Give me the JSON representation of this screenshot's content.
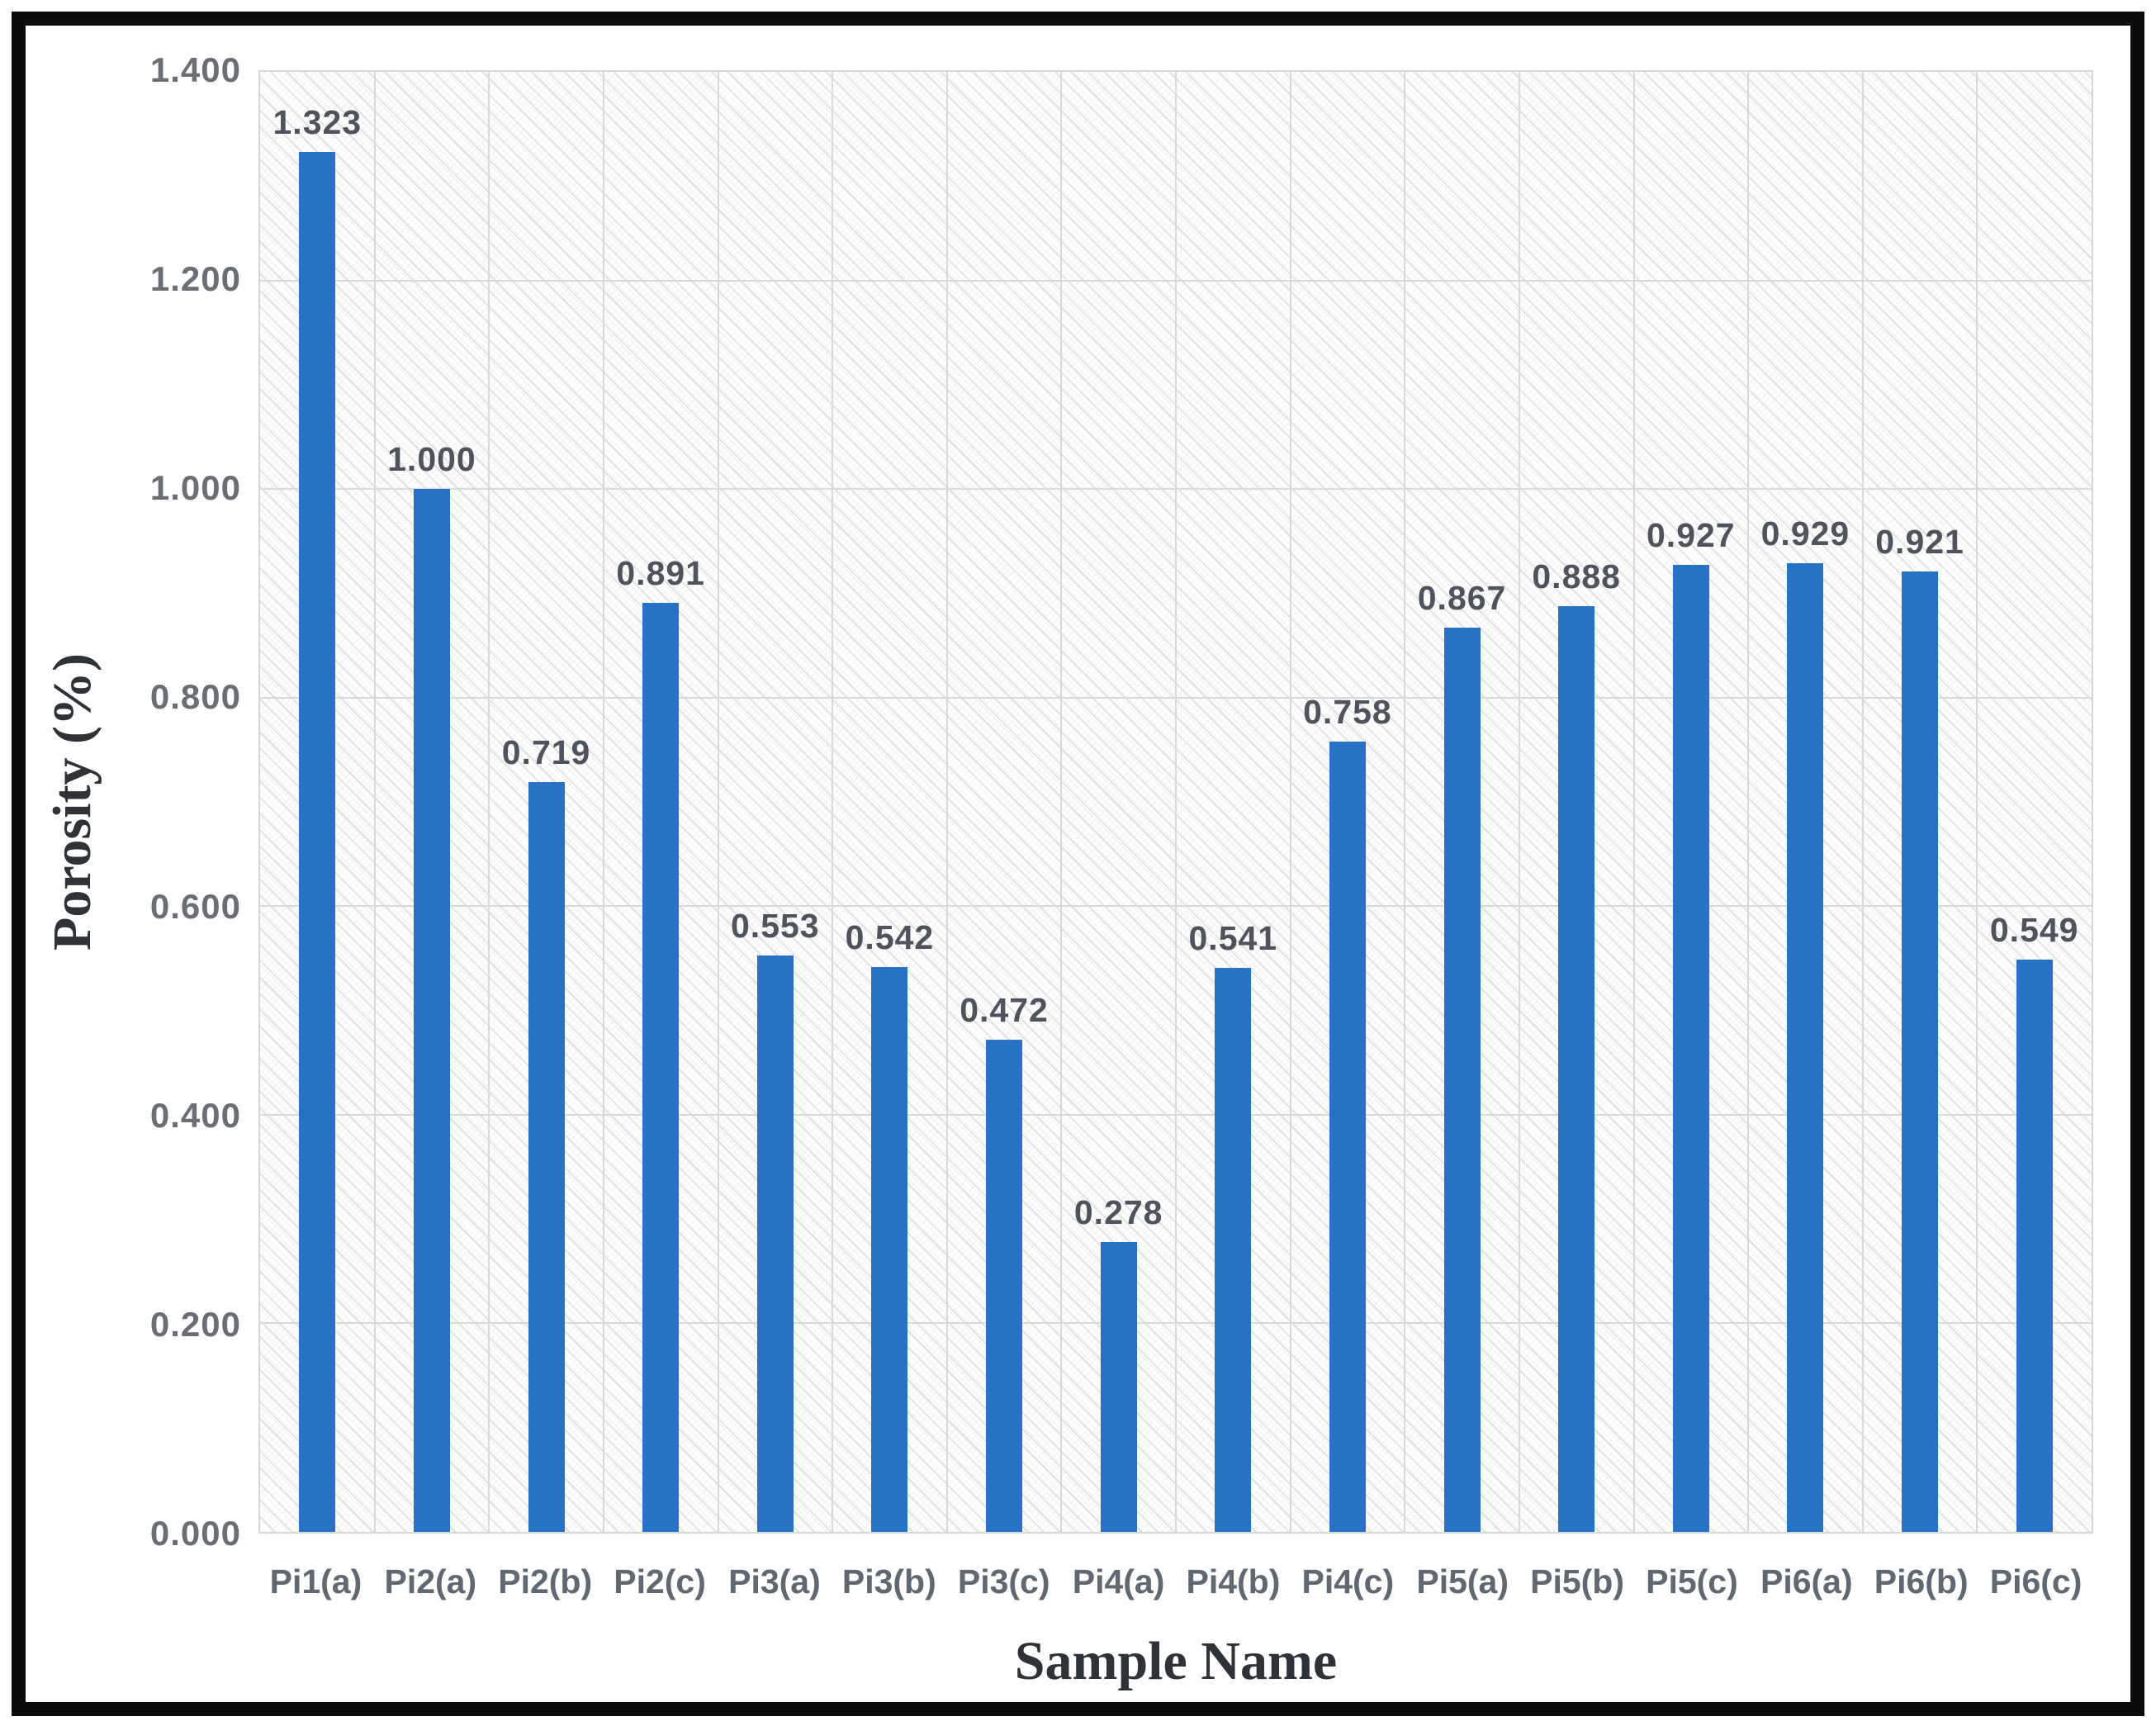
{
  "chart_data": {
    "type": "bar",
    "title": "",
    "xlabel": "Sample Name",
    "ylabel": "Porosity (%)",
    "categories": [
      "Pi1(a)",
      "Pi2(a)",
      "Pi2(b)",
      "Pi2(c)",
      "Pi3(a)",
      "Pi3(b)",
      "Pi3(c)",
      "Pi4(a)",
      "Pi4(b)",
      "Pi4(c)",
      "Pi5(a)",
      "Pi5(b)",
      "Pi5(c)",
      "Pi6(a)",
      "Pi6(b)",
      "Pi6(c)"
    ],
    "values": [
      1.323,
      1.0,
      0.719,
      0.891,
      0.553,
      0.542,
      0.472,
      0.278,
      0.541,
      0.758,
      0.867,
      0.888,
      0.927,
      0.929,
      0.921,
      0.549
    ],
    "value_labels": [
      "1.323",
      "1.000",
      "0.719",
      "0.891",
      "0.553",
      "0.542",
      "0.472",
      "0.278",
      "0.541",
      "0.758",
      "0.867",
      "0.888",
      "0.927",
      "0.929",
      "0.921",
      "0.549"
    ],
    "y_ticks": [
      "1.400",
      "1.200",
      "1.000",
      "0.800",
      "0.600",
      "0.400",
      "0.200",
      "0.000"
    ],
    "ylim": [
      0,
      1.4
    ],
    "grid": "horizontal value lines and vertical category boundary lines, light gray",
    "legend_position": "none",
    "bar_color": "#2673C5",
    "plot_background": "white with light gray downward-diagonal hatch pattern",
    "frame_color": "#0B0B0B"
  }
}
